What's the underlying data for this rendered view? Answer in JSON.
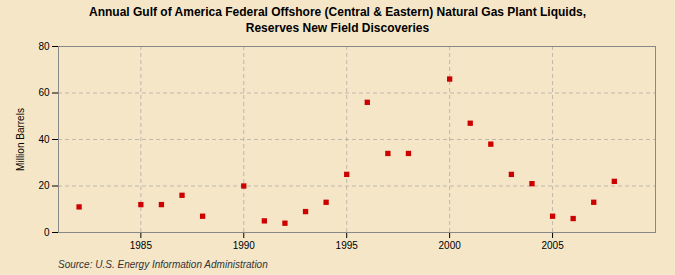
{
  "chart_data": {
    "type": "scatter",
    "title": "Annual Gulf of America Federal Offshore (Central & Eastern) Natural Gas Plant Liquids,\nReserves New Field Discoveries",
    "ylabel": "Million Barrels",
    "source": "Source: U.S. Energy Information Administration",
    "x": [
      1982,
      1985,
      1986,
      1987,
      1988,
      1990,
      1991,
      1992,
      1993,
      1994,
      1995,
      1996,
      1997,
      1998,
      2000,
      2001,
      2002,
      2003,
      2004,
      2005,
      2006,
      2007,
      2008
    ],
    "values": [
      11,
      12,
      12,
      16,
      7,
      20,
      5,
      4,
      9,
      13,
      25,
      56,
      34,
      34,
      66,
      47,
      38,
      25,
      21,
      7,
      6,
      13,
      22
    ],
    "color": "#cc0000",
    "marker": "square",
    "xlim": [
      1981,
      2010
    ],
    "xticks": [
      1985,
      1990,
      1995,
      2000,
      2005
    ],
    "ylim": [
      0,
      80
    ],
    "yticks": [
      0,
      20,
      40,
      60,
      80
    ],
    "grid": true
  }
}
